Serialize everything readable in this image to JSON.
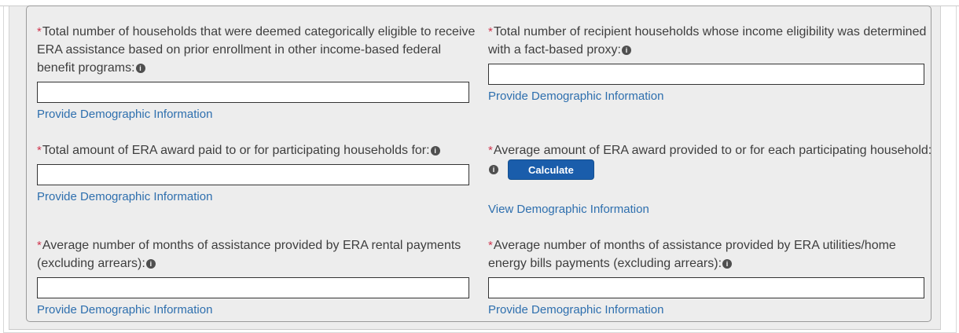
{
  "colors": {
    "page_background": "#ededed",
    "panel_border": "#9a9a9a",
    "label_text": "#3e3e3e",
    "required_asterisk": "#d0364f",
    "link_blue": "#2e6fae",
    "button_blue": "#1a5dab",
    "input_border": "#333333"
  },
  "form": {
    "required_marker": "*",
    "info_glyph": "i",
    "fields": [
      {
        "id": "households-categorically-eligible",
        "label": "Total number of households that were deemed categorically eligible to receive ERA assistance based on prior enrollment in other income-based federal benefit programs:",
        "value": "",
        "link": "Provide Demographic Information"
      },
      {
        "id": "households-fact-based-proxy",
        "label": "Total number of recipient households whose income eligibility was determined with a fact-based proxy:",
        "value": "",
        "link": "Provide Demographic Information"
      },
      {
        "id": "total-era-award-paid",
        "label": "Total amount of ERA award paid to or for participating households for:",
        "value": "",
        "link": "Provide Demographic Information"
      },
      {
        "id": "average-era-award-per-household",
        "label": "Average amount of ERA award provided to or for each participating household:",
        "button_label": "Calculate",
        "link": "View Demographic Information"
      },
      {
        "id": "average-months-rental-payments",
        "label": "Average number of months of assistance provided by ERA rental payments (excluding arrears):",
        "value": "",
        "link": "Provide Demographic Information"
      },
      {
        "id": "average-months-utilities-payments",
        "label": "Average number of months of assistance provided by ERA utilities/home energy bills payments (excluding arrears):",
        "value": "",
        "link": "Provide Demographic Information"
      }
    ]
  }
}
